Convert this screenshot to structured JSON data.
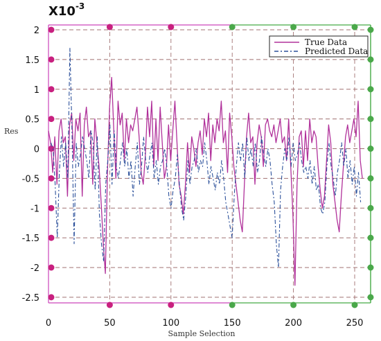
{
  "chart_data": {
    "type": "line",
    "multiplier": "X10",
    "multiplier_exp": "-3",
    "xlabel": "Sample Selection",
    "ylabel": "Res",
    "xlim": [
      0,
      255
    ],
    "ylim": [
      -2.5,
      2
    ],
    "x_ticks": [
      0,
      50,
      100,
      150,
      200,
      250
    ],
    "y_ticks": [
      2,
      1.5,
      1,
      0.5,
      0,
      -0.5,
      -1,
      -1.5,
      -2,
      -2.5
    ],
    "y_tick_labels": [
      "2",
      "1.5",
      "1",
      "0.5",
      "0",
      "-0.5",
      "-1",
      "-1.5",
      "-2",
      "-2.5"
    ],
    "legend_position": "top-right",
    "colors": {
      "true": "#b0309a",
      "pred": "#2a4f9a",
      "frame_left": "#cc44bb",
      "frame_right": "#44aa44",
      "grid": "#a07070",
      "dot_left": "#c8207f",
      "dot_right": "#4aa84a"
    },
    "series": [
      {
        "name": "True Data",
        "style": "solid",
        "y": [
          0.3,
          0.1,
          -0.4,
          0.2,
          -0.6,
          0.3,
          0.5,
          0.1,
          0.2,
          -0.8,
          0.4,
          0.6,
          -0.2,
          0.5,
          0.3,
          0.6,
          -0.8,
          0.4,
          0.7,
          0.2,
          0.3,
          -0.6,
          0.5,
          0.1,
          -0.3,
          -0.9,
          -1.6,
          -2.1,
          -0.4,
          0.7,
          1.2,
          0.3,
          -0.5,
          0.8,
          0.4,
          0.6,
          -0.2,
          0.5,
          0.1,
          0.4,
          0.3,
          0.5,
          0.7,
          0.2,
          -0.4,
          -0.6,
          -0.1,
          0.7,
          0.2,
          0.8,
          -0.3,
          0.5,
          -0.2,
          0.7,
          0.1,
          -0.5,
          -0.3,
          0.4,
          -0.2,
          0.3,
          0.8,
          0.1,
          -0.6,
          -0.8,
          -1.1,
          -0.6,
          0.1,
          -0.4,
          0.2,
          0.0,
          -0.3,
          0.1,
          0.3,
          -0.1,
          0.5,
          0.2,
          0.6,
          -0.2,
          0.4,
          0.1,
          0.5,
          0.3,
          0.8,
          0.1,
          0.3,
          -0.4,
          0.6,
          0.2,
          -0.3,
          -0.6,
          -0.9,
          -1.2,
          -1.4,
          -0.6,
          0.2,
          0.6,
          0.1,
          0.2,
          -0.6,
          0.1,
          0.4,
          0.2,
          -0.3,
          0.4,
          0.5,
          0.3,
          0.2,
          0.4,
          0.1,
          0.3,
          0.5,
          0.1,
          0.2,
          -0.2,
          0.5,
          -0.3,
          -1.1,
          -2.3,
          -0.6,
          0.2,
          0.3,
          -0.3,
          0.3,
          -0.2,
          0.5,
          0.1,
          0.3,
          0.2,
          -0.3,
          -0.7,
          -1.0,
          -0.8,
          -0.2,
          0.4,
          0.1,
          -0.6,
          -0.9,
          -1.2,
          -1.4,
          -0.8,
          -0.3,
          0.2,
          0.4,
          0.1,
          0.3,
          0.5,
          0.2,
          0.8,
          -0.2,
          -0.5
        ],
        "x_start": 0,
        "x_step": 1.72
      },
      {
        "name": "Predicted Data",
        "style": "dashdot",
        "y": [
          0.1,
          0.0,
          -0.6,
          -1.5,
          -0.4,
          0.2,
          -0.3,
          0.1,
          -0.5,
          1.7,
          0.3,
          -1.6,
          0.1,
          -0.3,
          -0.1,
          0.2,
          0.0,
          -0.2,
          -0.5,
          0.3,
          0.1,
          -0.7,
          0.2,
          -1.1,
          -1.6,
          -1.9,
          -0.6,
          -0.2,
          0.4,
          -0.6,
          0.3,
          -0.3,
          -0.5,
          -0.2,
          0.1,
          -0.3,
          0.0,
          -0.5,
          -0.2,
          -0.8,
          -0.3,
          0.1,
          -0.6,
          -0.3,
          0.2,
          -0.2,
          -0.4,
          -0.1,
          0.1,
          -0.5,
          -0.2,
          -0.6,
          -0.3,
          -0.2,
          0.0,
          -0.3,
          -0.8,
          -1.0,
          -0.7,
          -0.5,
          -0.1,
          -0.6,
          -1.0,
          -1.2,
          -0.8,
          -0.2,
          -0.6,
          -0.3,
          -0.2,
          0.0,
          -0.4,
          -0.2,
          -0.3,
          0.1,
          -0.2,
          -0.6,
          -0.3,
          -0.5,
          -0.7,
          -0.4,
          -0.6,
          -0.2,
          -0.5,
          -0.9,
          -1.1,
          -1.3,
          -1.5,
          -0.8,
          -0.3,
          0.1,
          -0.2,
          0.1,
          -0.5,
          0.2,
          -0.2,
          0.0,
          -0.3,
          0.1,
          -0.4,
          -0.2,
          0.2,
          -0.1,
          -0.3,
          0.0,
          -0.2,
          -0.6,
          -0.9,
          -1.6,
          -2.0,
          -0.7,
          -0.3,
          0.0,
          -0.2,
          0.2,
          -0.3,
          0.1,
          -0.2,
          -0.1,
          0.1,
          -0.2,
          -0.4,
          -0.3,
          -0.5,
          -0.2,
          -0.6,
          -0.3,
          -0.7,
          -0.6,
          -1.0,
          -1.1,
          -0.9,
          -0.3,
          0.1,
          -0.3,
          -0.5,
          -0.8,
          -0.4,
          -0.2,
          0.1,
          -0.3,
          0.0,
          -0.5,
          -0.2,
          -0.6,
          -0.3,
          -0.8,
          -0.4,
          -0.9
        ],
        "x_start": 2,
        "x_step": 1.72
      }
    ]
  }
}
